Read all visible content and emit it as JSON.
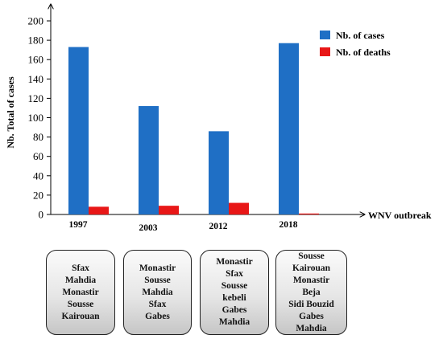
{
  "chart_data": {
    "type": "bar",
    "ylabel": "Nb. Total of cases",
    "xlabel": "WNV outbreak",
    "ylim": [
      0,
      200
    ],
    "yticks": [
      0,
      20,
      40,
      60,
      80,
      100,
      120,
      140,
      160,
      180,
      200
    ],
    "categories": [
      "1997",
      "2003",
      "2012",
      "2018"
    ],
    "series": [
      {
        "name": "Nb. of cases",
        "color": "#1f6fc5",
        "values": [
          173,
          112,
          86,
          177
        ]
      },
      {
        "name": "Nb. of deaths",
        "color": "#e81717",
        "values": [
          8,
          9,
          12,
          1
        ]
      }
    ],
    "legend": "top-right",
    "grid": false
  },
  "regions": [
    {
      "year": "1997",
      "names": [
        "Sfax",
        "Mahdia",
        "Monastir",
        "Sousse",
        "Kairouan"
      ]
    },
    {
      "year": "2003",
      "names": [
        "Monastir",
        "Sousse",
        "Mahdia",
        "Sfax",
        "Gabes"
      ]
    },
    {
      "year": "2012",
      "names": [
        "Monastir",
        "Sfax",
        "Sousse",
        "kebeli",
        "Gabes",
        "Mahdia"
      ]
    },
    {
      "year": "2018",
      "names": [
        "Sousse",
        "Kairouan",
        "Monastir",
        "Beja",
        "Sidi Bouzid",
        "Gabes",
        "Mahdia"
      ]
    }
  ]
}
